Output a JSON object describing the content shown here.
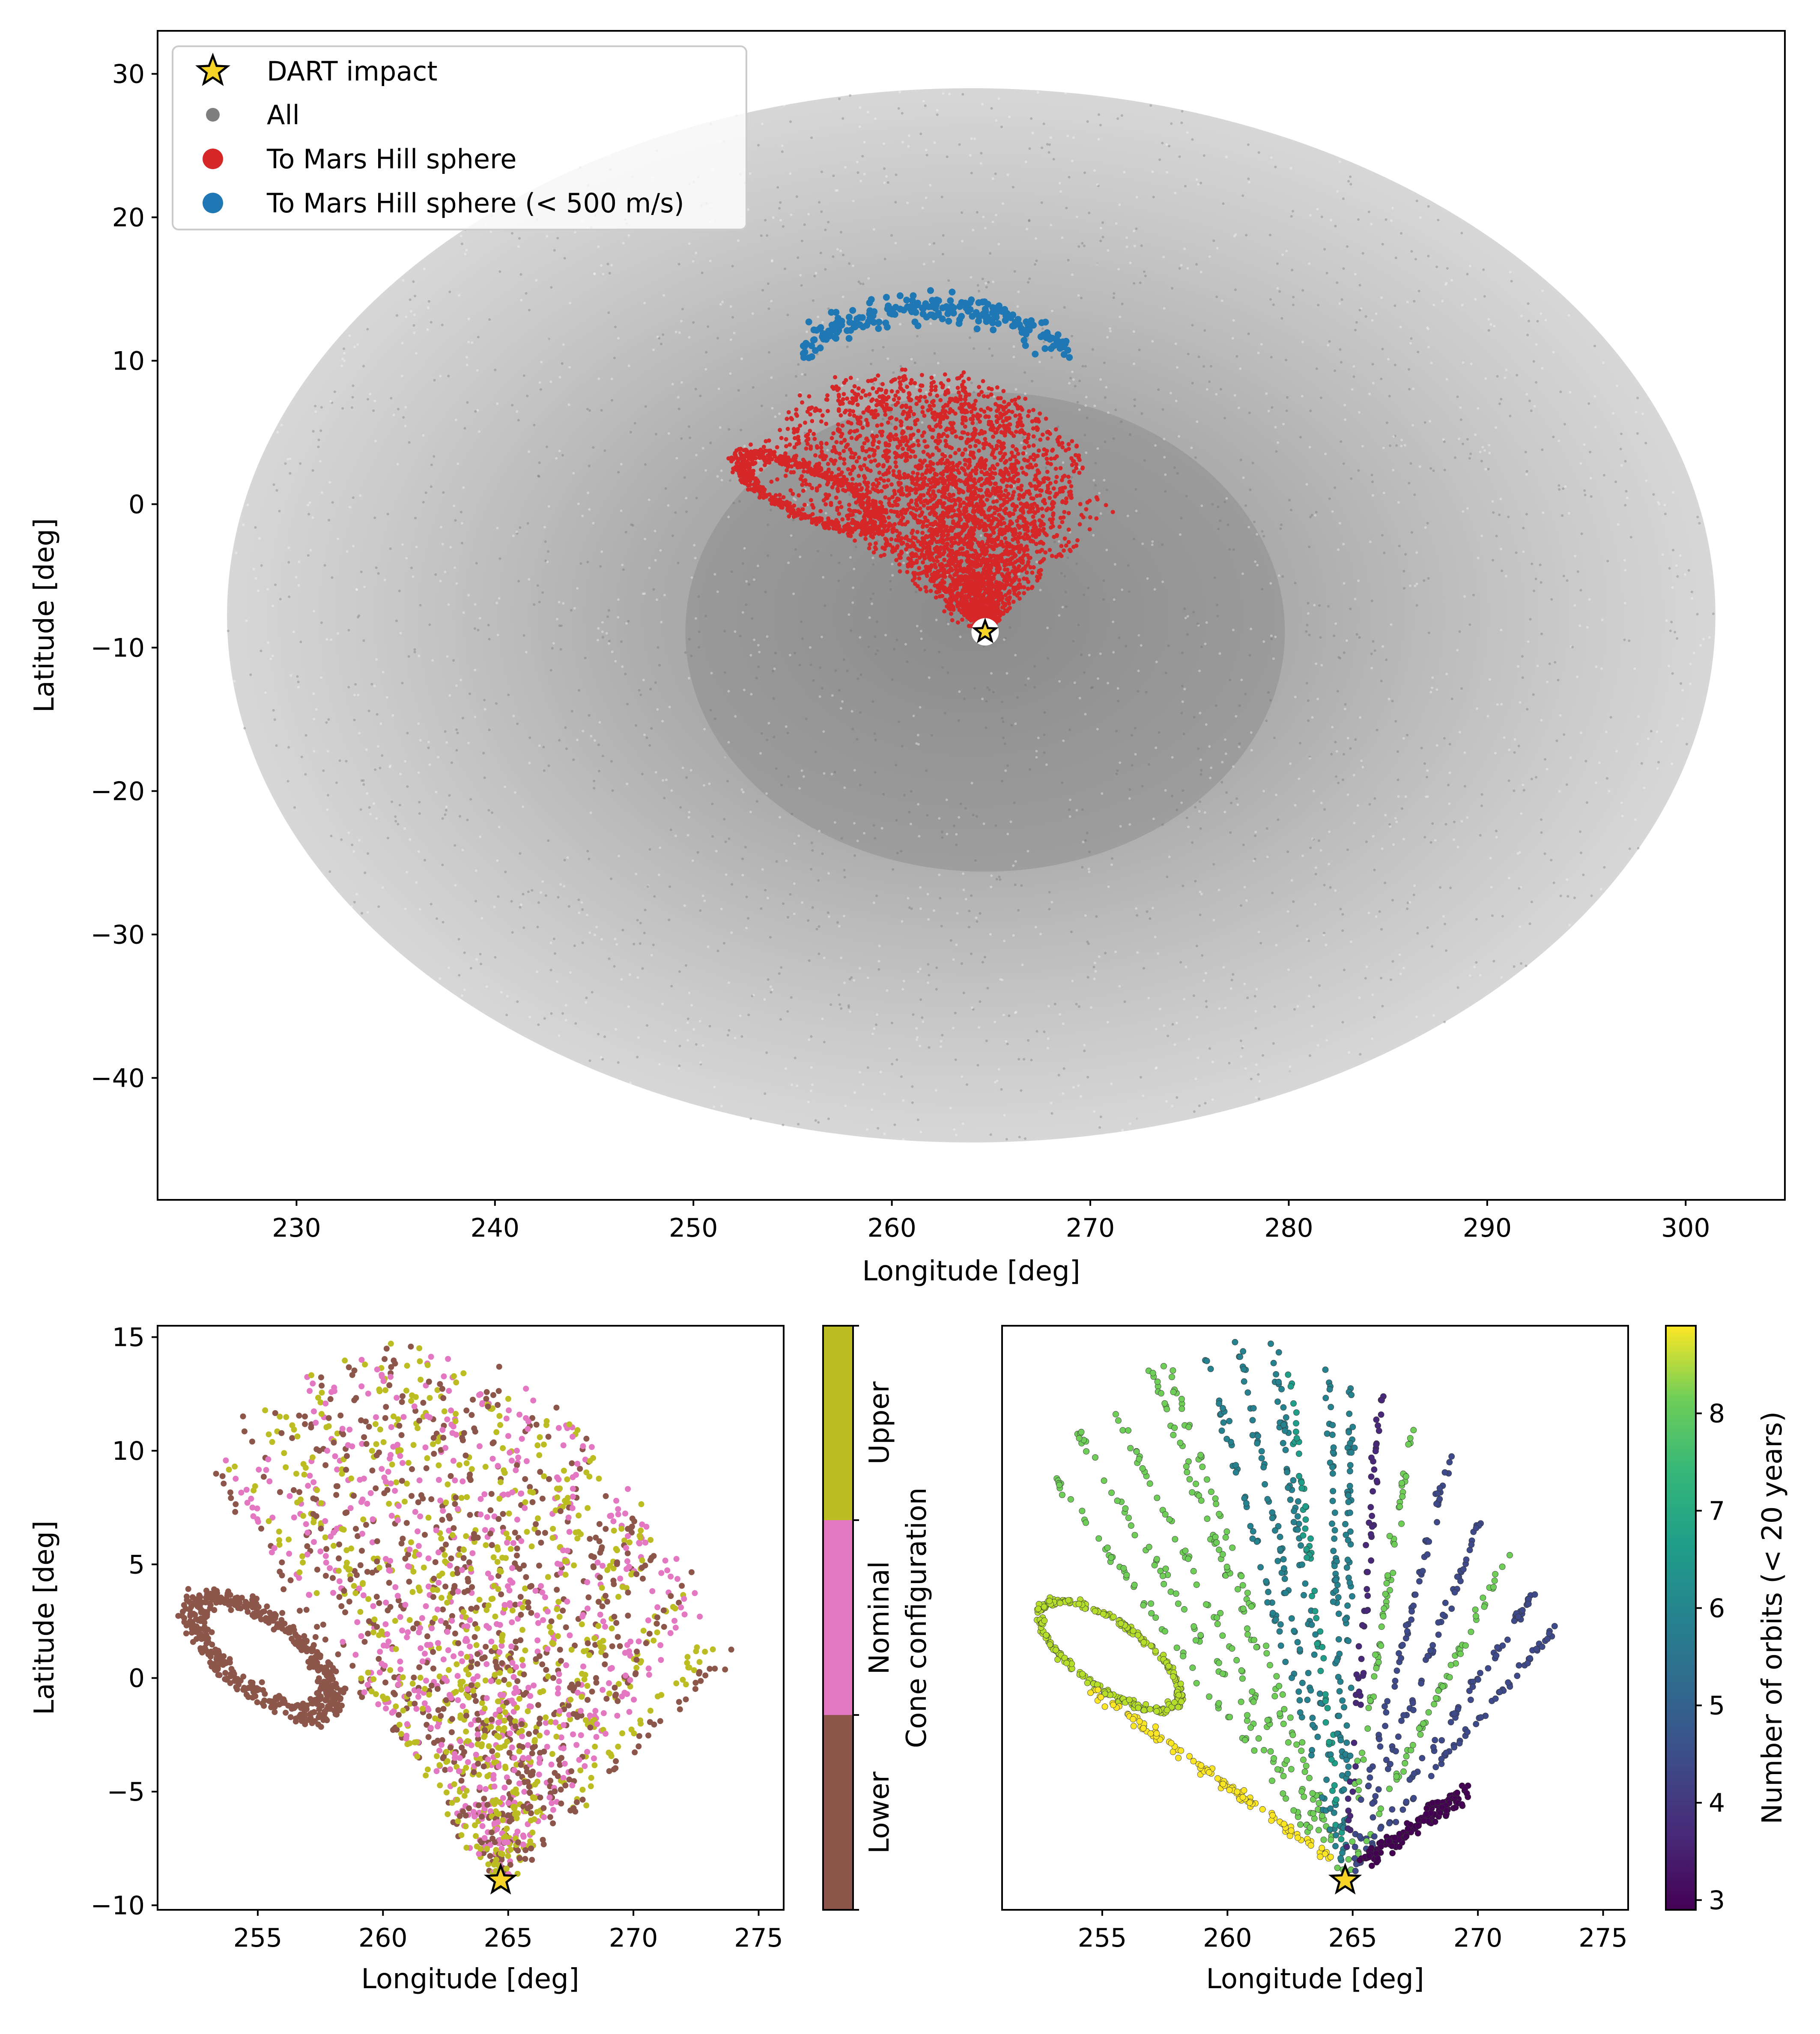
{
  "chart_data": [
    {
      "type": "scatter",
      "id": "top",
      "title": "",
      "xlabel": "Longitude [deg]",
      "ylabel": "Latitude [deg]",
      "xlim": [
        223,
        305
      ],
      "ylim": [
        -48.5,
        33
      ],
      "xticks": [
        230,
        240,
        250,
        260,
        270,
        280,
        290,
        300
      ],
      "yticks": [
        30,
        20,
        10,
        0,
        -10,
        -20,
        -30,
        -40
      ],
      "legend": {
        "placement": "top-left",
        "entries": [
          {
            "label": "DART impact",
            "marker": "star",
            "color": "#f5d327"
          },
          {
            "label": "All",
            "marker": "dot",
            "color": "#7f7f7f"
          },
          {
            "label": "To Mars Hill sphere",
            "marker": "dot",
            "color": "#d62728"
          },
          {
            "label": "To Mars Hill sphere (< 500 m/s)",
            "marker": "dot",
            "color": "#1f77b4"
          }
        ]
      },
      "series": [
        {
          "name": "All",
          "shape": "ellipse",
          "lon_range": [
            226.5,
            301.5
          ],
          "lat_range": [
            -44.5,
            29.0
          ],
          "density_peak": [
            264.7,
            -8.9
          ],
          "color": "#7f7f7f"
        },
        {
          "name": "To Mars Hill sphere",
          "shape": "fan",
          "lon_range": [
            252.0,
            270.0
          ],
          "lat_range": [
            -9.0,
            9.5
          ],
          "color": "#d62728"
        },
        {
          "name": "To Mars Hill sphere (< 500 m/s)",
          "shape": "arc",
          "lon_range": [
            255.5,
            269.0
          ],
          "lat_range": [
            10.0,
            14.8
          ],
          "color": "#1f77b4"
        }
      ],
      "impact": {
        "lon": 264.7,
        "lat": -8.9
      }
    },
    {
      "type": "scatter",
      "id": "bottom-left",
      "title": "",
      "xlabel": "Longitude [deg]",
      "ylabel": "Latitude [deg]",
      "xlim": [
        251,
        276
      ],
      "ylim": [
        -10.2,
        15.5
      ],
      "xticks": [
        255,
        260,
        265,
        270,
        275
      ],
      "yticks": [
        15,
        10,
        5,
        0,
        -5,
        -10
      ],
      "colorbar": {
        "label": "Cone configuration",
        "categories": [
          "Lower",
          "Nominal",
          "Upper"
        ],
        "colors": [
          "#8c564b",
          "#e377c2",
          "#bcbd22"
        ]
      },
      "impact": {
        "lon": 264.7,
        "lat": -8.9
      }
    },
    {
      "type": "scatter",
      "id": "bottom-right",
      "title": "",
      "xlabel": "Longitude [deg]",
      "ylabel": "",
      "xlim": [
        251,
        276
      ],
      "ylim": [
        -10.2,
        15.5
      ],
      "xticks": [
        255,
        260,
        265,
        270,
        275
      ],
      "colorbar": {
        "label": "Number of orbits (< 20 years)",
        "range": [
          2.9,
          8.9
        ],
        "ticks": [
          3,
          4,
          5,
          6,
          7,
          8
        ],
        "colormap": "viridis"
      },
      "impact": {
        "lon": 264.7,
        "lat": -8.9
      }
    }
  ],
  "labels": {
    "top_xlabel": "Longitude [deg]",
    "top_ylabel": "Latitude [deg]",
    "legend_impact": "DART impact",
    "legend_all": "All",
    "legend_mars": "To Mars Hill sphere",
    "legend_mars_slow": "To Mars Hill sphere (< 500 m/s)",
    "bl_xlabel": "Longitude [deg]",
    "bl_ylabel": "Latitude [deg]",
    "bl_cbar_label": "Cone configuration",
    "bl_cbar_lower": "Lower",
    "bl_cbar_nominal": "Nominal",
    "bl_cbar_upper": "Upper",
    "br_xlabel": "Longitude [deg]",
    "br_cbar_label": "Number of orbits (< 20 years)"
  },
  "colors": {
    "gray": "#7f7f7f",
    "red": "#d62728",
    "blue": "#1f77b4",
    "star": "#f5d327",
    "brown": "#8c564b",
    "pink": "#e377c2",
    "olive": "#bcbd22"
  }
}
